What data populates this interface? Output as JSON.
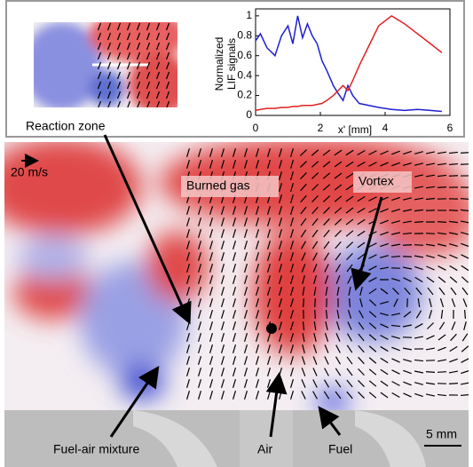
{
  "chart_data": {
    "type": "line",
    "xlabel": "x' [mm]",
    "ylabel": [
      "Normalized",
      "LIF signals"
    ],
    "x": [
      0,
      0.15,
      0.35,
      0.6,
      0.8,
      1.0,
      1.15,
      1.3,
      1.45,
      1.6,
      1.75,
      1.9,
      2.05,
      2.2,
      2.4,
      2.55,
      2.7,
      2.85,
      3.0,
      3.2,
      3.5,
      3.8,
      4.2,
      4.6,
      5.0,
      5.4,
      5.75
    ],
    "series": [
      {
        "color": "#1f1fd0",
        "values": [
          0.75,
          0.82,
          0.68,
          0.6,
          0.8,
          0.9,
          0.72,
          1.0,
          0.78,
          0.92,
          0.8,
          0.72,
          0.55,
          0.45,
          0.3,
          0.22,
          0.15,
          0.3,
          0.2,
          0.12,
          0.1,
          0.08,
          0.06,
          0.05,
          0.06,
          0.05,
          0.04
        ]
      },
      {
        "color": "#e02020",
        "values": [
          0.05,
          0.06,
          0.07,
          0.07,
          0.08,
          0.08,
          0.09,
          0.09,
          0.1,
          0.1,
          0.1,
          0.11,
          0.12,
          0.15,
          0.2,
          0.25,
          0.3,
          0.25,
          0.35,
          0.5,
          0.7,
          0.9,
          1.0,
          0.92,
          0.82,
          0.72,
          0.63
        ]
      }
    ],
    "xlim": [
      0,
      6
    ],
    "xticks": [
      0,
      2,
      4,
      6
    ],
    "ylim": [
      0,
      1.07
    ],
    "yticks": [
      0,
      0.2,
      0.4,
      0.6,
      0.8,
      1
    ]
  },
  "annotations": {
    "reaction_zone": "Reaction zone",
    "scale_velocity": "20 m/s",
    "burned_gas": "Burned gas",
    "vortex": "Vortex",
    "fuel_air": "Fuel-air mixture",
    "air": "Air",
    "fuel": "Fuel",
    "scale_length": "5 mm"
  }
}
